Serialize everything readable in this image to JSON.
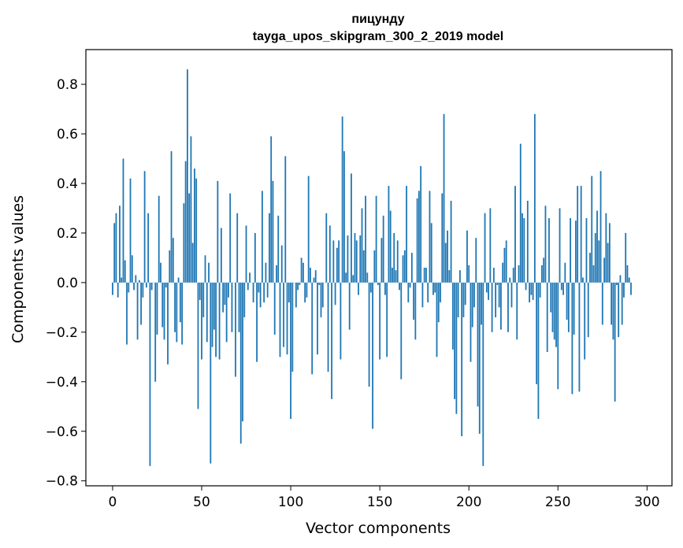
{
  "chart_data": {
    "type": "bar",
    "title": "пицунду",
    "subtitle": "tayga_upos_skipgram_300_2_2019 model",
    "xlabel": "Vector components",
    "ylabel": "Components values",
    "xlim": [
      -15,
      314
    ],
    "ylim": [
      -0.82,
      0.94
    ],
    "xticks": [
      0,
      50,
      100,
      150,
      200,
      250,
      300
    ],
    "yticks": [
      -0.8,
      -0.6,
      -0.4,
      -0.2,
      0.0,
      0.2,
      0.4,
      0.6,
      0.8
    ],
    "xtick_labels": [
      "0",
      "50",
      "100",
      "150",
      "200",
      "250",
      "300"
    ],
    "ytick_labels": [
      "−0.8",
      "−0.6",
      "−0.4",
      "−0.2",
      "0.0",
      "0.2",
      "0.4",
      "0.6",
      "0.8"
    ],
    "bar_color": "#1f77b4",
    "grid": false,
    "values": [
      -0.05,
      0.24,
      0.28,
      -0.06,
      0.31,
      0.02,
      0.5,
      0.09,
      -0.25,
      -0.04,
      0.42,
      0.11,
      -0.03,
      0.03,
      -0.23,
      0.01,
      -0.17,
      -0.06,
      0.45,
      -0.02,
      0.28,
      -0.74,
      -0.03,
      0.0,
      -0.4,
      -0.21,
      0.35,
      0.08,
      -0.18,
      -0.23,
      -0.02,
      -0.33,
      0.13,
      0.53,
      0.18,
      -0.2,
      -0.24,
      0.02,
      -0.16,
      -0.25,
      0.32,
      0.49,
      0.86,
      0.36,
      0.59,
      0.16,
      0.46,
      0.42,
      -0.51,
      -0.07,
      -0.31,
      -0.14,
      0.11,
      -0.24,
      0.08,
      -0.73,
      -0.26,
      -0.19,
      -0.3,
      0.41,
      -0.31,
      0.22,
      -0.12,
      -0.09,
      -0.24,
      -0.06,
      0.36,
      -0.2,
      0.0,
      -0.38,
      0.28,
      -0.2,
      -0.65,
      -0.56,
      -0.14,
      0.23,
      -0.03,
      0.04,
      0.0,
      -0.08,
      0.2,
      -0.32,
      -0.04,
      -0.1,
      0.37,
      -0.08,
      0.08,
      -0.06,
      0.28,
      0.59,
      0.41,
      -0.21,
      0.07,
      0.27,
      -0.3,
      0.15,
      -0.26,
      0.51,
      -0.29,
      -0.08,
      -0.55,
      -0.36,
      0.0,
      -0.1,
      -0.03,
      -0.01,
      0.1,
      0.08,
      -0.08,
      -0.06,
      0.43,
      0.06,
      -0.37,
      0.02,
      0.05,
      -0.29,
      -0.01,
      -0.14,
      -0.1,
      0.0,
      0.28,
      -0.36,
      0.23,
      -0.47,
      0.17,
      -0.09,
      0.14,
      0.17,
      -0.31,
      0.67,
      0.53,
      0.04,
      0.19,
      -0.19,
      0.44,
      0.03,
      0.2,
      0.17,
      -0.05,
      0.19,
      0.3,
      0.13,
      0.35,
      0.04,
      -0.42,
      -0.04,
      -0.59,
      0.13,
      0.35,
      -0.01,
      -0.31,
      0.18,
      0.27,
      -0.05,
      -0.3,
      0.39,
      0.29,
      0.06,
      0.2,
      0.05,
      0.17,
      -0.03,
      -0.39,
      0.11,
      0.13,
      0.39,
      -0.08,
      -0.02,
      0.12,
      -0.15,
      -0.23,
      0.34,
      0.37,
      0.47,
      -0.1,
      0.06,
      0.06,
      -0.08,
      0.37,
      0.24,
      -0.05,
      -0.04,
      -0.3,
      -0.16,
      -0.08,
      0.36,
      0.68,
      0.16,
      0.21,
      0.05,
      0.33,
      -0.27,
      -0.47,
      -0.53,
      -0.14,
      0.05,
      -0.62,
      -0.14,
      -0.09,
      0.21,
      0.07,
      -0.32,
      -0.18,
      -0.1,
      0.18,
      -0.5,
      -0.61,
      -0.17,
      -0.74,
      0.28,
      -0.04,
      -0.07,
      0.3,
      -0.2,
      0.06,
      -0.14,
      -0.01,
      -0.1,
      -0.19,
      0.08,
      0.14,
      0.17,
      -0.2,
      0.02,
      -0.1,
      0.06,
      0.39,
      -0.23,
      0.07,
      0.56,
      0.28,
      0.26,
      -0.03,
      0.33,
      -0.08,
      -0.05,
      -0.07,
      0.68,
      -0.41,
      -0.55,
      -0.06,
      0.07,
      0.1,
      0.31,
      -0.28,
      0.26,
      -0.12,
      -0.2,
      -0.23,
      -0.26,
      -0.43,
      0.3,
      -0.03,
      -0.05,
      0.08,
      -0.15,
      -0.2,
      0.26,
      -0.45,
      -0.21,
      0.25,
      0.39,
      -0.44,
      0.39,
      0.02,
      -0.31,
      0.26,
      -0.22,
      0.12,
      0.43,
      0.07,
      0.2,
      0.29,
      0.17,
      0.45,
      -0.17,
      0.1,
      0.28,
      0.16,
      0.24,
      -0.17,
      -0.23,
      -0.48,
      -0.01,
      -0.22,
      0.03,
      -0.17,
      -0.06,
      0.2,
      0.07,
      0.02,
      -0.05
    ]
  }
}
